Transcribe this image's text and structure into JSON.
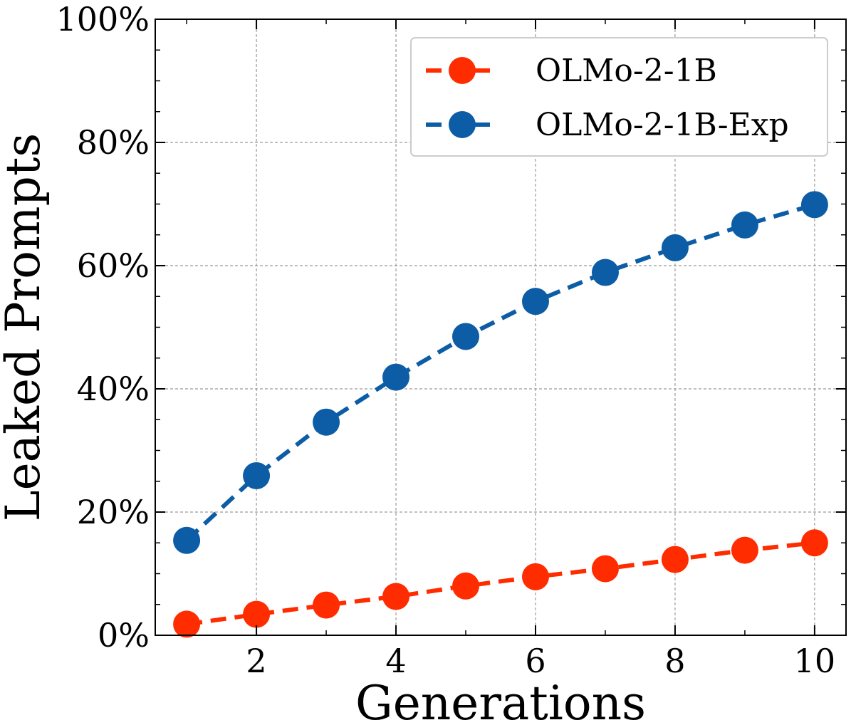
{
  "chart_data": {
    "type": "line",
    "title": "",
    "xlabel": "Generations",
    "ylabel": "Leaked Prompts",
    "x": [
      1,
      2,
      3,
      4,
      5,
      6,
      7,
      8,
      9,
      10
    ],
    "xlim": [
      0.55,
      10.45
    ],
    "ylim": [
      0,
      100
    ],
    "xticks": [
      2,
      4,
      6,
      8,
      10
    ],
    "xtick_labels": [
      "2",
      "4",
      "6",
      "8",
      "10"
    ],
    "yticks": [
      0,
      20,
      40,
      60,
      80,
      100
    ],
    "ytick_labels": [
      "0%",
      "20%",
      "40%",
      "60%",
      "80%",
      "100%"
    ],
    "grid": true,
    "legend_position": "top-right",
    "series": [
      {
        "name": "OLMo-2-1B",
        "color": "#ff2c00",
        "line_style": "dashed",
        "marker": "circle",
        "values": [
          1.8,
          3.4,
          4.9,
          6.3,
          8.0,
          9.5,
          10.8,
          12.3,
          13.8,
          15.0
        ]
      },
      {
        "name": "OLMo-2-1B-Exp",
        "color": "#0c5da5",
        "line_style": "dashed",
        "marker": "circle",
        "values": [
          15.4,
          25.9,
          34.6,
          41.9,
          48.5,
          54.2,
          58.9,
          62.9,
          66.6,
          69.9
        ]
      }
    ]
  }
}
